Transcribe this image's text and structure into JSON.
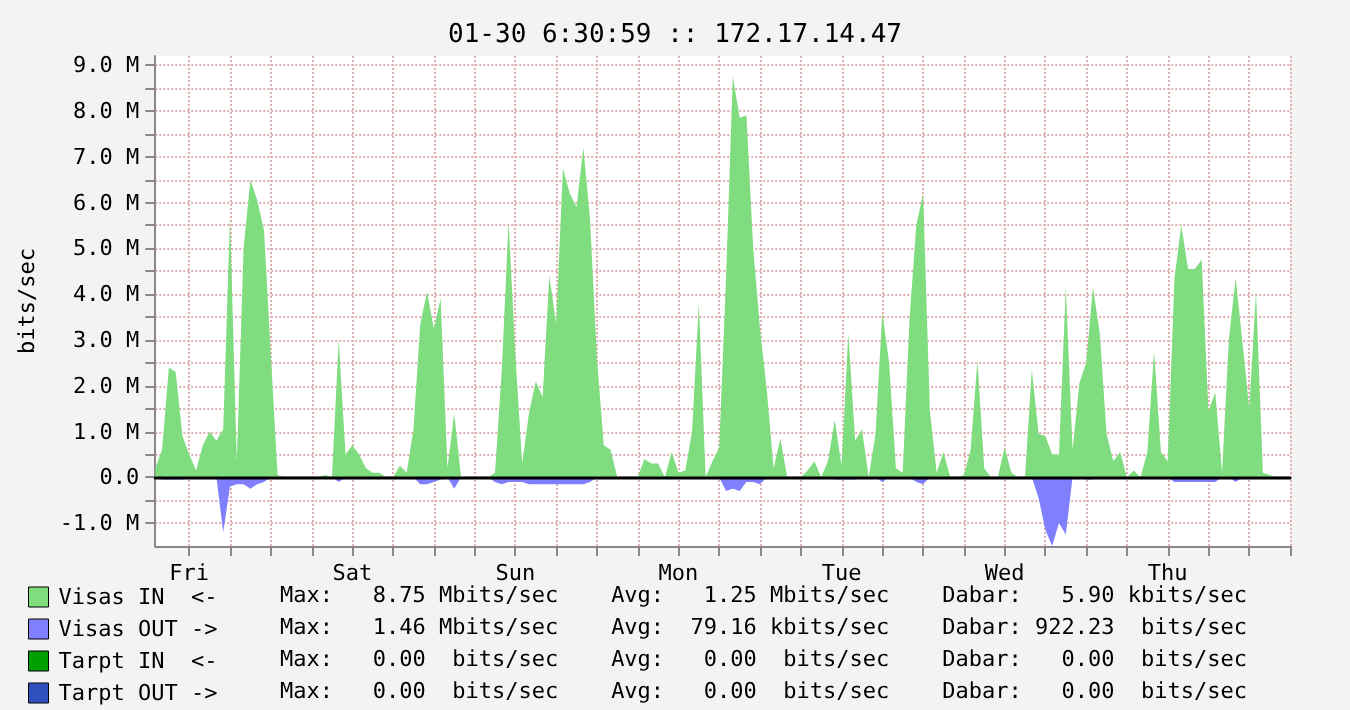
{
  "chart_data": {
    "type": "area",
    "title": "01-30 6:30:59 :: 172.17.14.47",
    "ylabel": "bits/sec",
    "categories": [
      null,
      null,
      null,
      null,
      null,
      "Fri",
      null,
      null,
      null,
      null,
      null,
      null,
      null,
      null,
      null,
      null,
      null,
      null,
      null,
      null,
      null,
      null,
      null,
      null,
      null,
      null,
      null,
      null,
      null,
      "Sat",
      null,
      null,
      null,
      null,
      null,
      null,
      null,
      null,
      null,
      null,
      null,
      null,
      null,
      null,
      null,
      null,
      null,
      null,
      null,
      null,
      null,
      null,
      null,
      "Sun",
      null,
      null,
      null,
      null,
      null,
      null,
      null,
      null,
      null,
      null,
      null,
      null,
      null,
      null,
      null,
      null,
      null,
      null,
      null,
      null,
      null,
      null,
      null,
      "Mon",
      null,
      null,
      null,
      null,
      null,
      null,
      null,
      null,
      null,
      null,
      null,
      null,
      null,
      null,
      null,
      null,
      null,
      null,
      null,
      null,
      null,
      null,
      null,
      "Tue",
      null,
      null,
      null,
      null,
      null,
      null,
      null,
      null,
      null,
      null,
      null,
      null,
      null,
      null,
      null,
      null,
      null,
      null,
      null,
      null,
      null,
      null,
      null,
      "Wed",
      null,
      null,
      null,
      null,
      null,
      null,
      null,
      null,
      null,
      null,
      null,
      null,
      null,
      null,
      null,
      null,
      null,
      null,
      null,
      null,
      null,
      null,
      null,
      "Thu",
      null,
      null,
      null,
      null,
      null,
      null,
      null,
      null,
      null,
      null,
      null,
      null,
      null,
      null,
      null,
      null,
      null,
      null
    ],
    "ylim": [
      -1.5,
      9.2
    ],
    "yticks": [
      {
        "value": -1,
        "label": "-1.0 M"
      },
      {
        "value": -0.5,
        "label": null
      },
      {
        "value": 0,
        "label": "0.0"
      },
      {
        "value": 0.5,
        "label": null
      },
      {
        "value": 1,
        "label": "1.0 M"
      },
      {
        "value": 1.5,
        "label": null
      },
      {
        "value": 2,
        "label": "2.0 M"
      },
      {
        "value": 2.5,
        "label": null
      },
      {
        "value": 3,
        "label": "3.0 M"
      },
      {
        "value": 3.5,
        "label": null
      },
      {
        "value": 4,
        "label": "4.0 M"
      },
      {
        "value": 4.5,
        "label": null
      },
      {
        "value": 5,
        "label": "5.0 M"
      },
      {
        "value": 5.5,
        "label": null
      },
      {
        "value": 6,
        "label": "6.0 M"
      },
      {
        "value": 6.5,
        "label": null
      },
      {
        "value": 7,
        "label": "7.0 M"
      },
      {
        "value": 7.5,
        "label": null
      },
      {
        "value": 8,
        "label": "8.0 M"
      },
      {
        "value": 8.5,
        "label": null
      },
      {
        "value": 9,
        "label": "9.0 M"
      }
    ],
    "grid": true,
    "legend": "bottom",
    "marker": "none",
    "annotations": [
      "Max:   8.75 Mbits/sec    Avg:   1.25 Mbits/sec    Dabar:   5.90 kbits/sec",
      "Max:   1.46 Mbits/sec    Avg:  79.16 kbits/sec    Dabar: 922.23  bits/sec",
      "Max:   0.00  bits/sec    Avg:   0.00  bits/sec    Dabar:   0.00  bits/sec",
      "Max:   0.00  bits/sec    Avg:   0.00  bits/sec    Dabar:   0.00  bits/sec"
    ],
    "series": [
      {
        "name": "Visas IN  <-",
        "color": "#7fdc7f",
        "values": [
          0.2,
          0.6,
          2.4,
          2.3,
          0.9,
          0.5,
          0.15,
          0.7,
          1.0,
          0.8,
          1.05,
          5.7,
          0.35,
          5.0,
          6.5,
          6.05,
          5.4,
          2.7,
          0.05,
          0,
          0,
          0,
          0,
          0,
          0,
          0.05,
          0,
          3.0,
          0.5,
          0.7,
          0.5,
          0.2,
          0.1,
          0.1,
          0,
          0,
          0.25,
          0.1,
          1.05,
          3.35,
          4.05,
          3.25,
          3.9,
          0.2,
          1.4,
          0,
          0,
          0,
          0,
          0,
          0.1,
          2.35,
          5.6,
          2.65,
          0.3,
          1.4,
          2.1,
          1.75,
          4.4,
          3.35,
          6.75,
          6.2,
          5.9,
          7.2,
          5.6,
          2.6,
          0.7,
          0.6,
          0,
          0,
          0,
          0,
          0.4,
          0.3,
          0.3,
          0,
          0.55,
          0.1,
          0.15,
          1.0,
          3.8,
          0,
          0.35,
          0.65,
          4.35,
          8.75,
          7.85,
          7.9,
          5.0,
          3.25,
          1.9,
          0.2,
          0.85,
          0,
          0,
          0,
          0.15,
          0.35,
          0,
          0.35,
          1.25,
          0.25,
          3.15,
          0.8,
          1.05,
          0,
          0.95,
          3.6,
          2.5,
          0.2,
          0.1,
          3.45,
          5.5,
          6.2,
          1.45,
          0.1,
          0.55,
          0,
          0,
          0.05,
          0.6,
          2.55,
          0.2,
          0,
          0,
          0.65,
          0.1,
          0,
          0,
          2.35,
          0.95,
          0.9,
          0.5,
          0.5,
          4.15,
          0.6,
          2.05,
          2.5,
          4.15,
          3.15,
          0.95,
          0.35,
          0.55,
          0,
          0.15,
          0,
          0.55,
          2.75,
          0.55,
          0.35,
          4.35,
          5.5,
          4.55,
          4.55,
          4.75,
          1.45,
          1.85,
          0.1,
          3.0,
          4.35,
          2.95,
          1.5,
          4.05,
          0.1,
          0.05,
          0,
          0,
          0
        ]
      },
      {
        "name": "Visas OUT ->",
        "color": "#8080ff",
        "values": [
          0,
          -0.05,
          -0.05,
          -0.05,
          -0.05,
          0,
          0,
          0,
          0,
          0,
          -1.2,
          -0.2,
          -0.15,
          -0.15,
          -0.25,
          -0.15,
          -0.1,
          0,
          0,
          0,
          0,
          0,
          0,
          0,
          0,
          0,
          0,
          -0.1,
          0,
          0,
          0,
          0,
          0,
          0,
          0,
          0,
          0,
          0,
          0,
          -0.15,
          -0.15,
          -0.1,
          -0.05,
          0,
          -0.25,
          0,
          0,
          0,
          0,
          0,
          -0.1,
          -0.15,
          -0.1,
          -0.1,
          -0.1,
          -0.15,
          -0.15,
          -0.15,
          -0.15,
          -0.15,
          -0.15,
          -0.15,
          -0.15,
          -0.15,
          -0.1,
          0,
          0,
          0,
          0,
          0,
          0,
          0,
          0,
          0,
          0,
          0,
          0,
          0,
          0,
          0,
          0,
          0,
          0,
          0,
          -0.3,
          -0.25,
          -0.3,
          -0.1,
          -0.1,
          -0.15,
          0,
          0,
          0,
          0,
          0,
          0,
          0,
          0,
          0,
          0,
          -0.05,
          -0.05,
          -0.05,
          -0.05,
          0,
          0,
          0,
          -0.1,
          0,
          0,
          0,
          0,
          -0.1,
          -0.15,
          0,
          0,
          0,
          0,
          0,
          0,
          0,
          0,
          0,
          0,
          0,
          0,
          0,
          0,
          0,
          0,
          -0.45,
          -1.15,
          -1.5,
          -1.0,
          -1.25,
          0,
          0,
          -0.05,
          -0.05,
          0,
          0,
          0,
          0,
          0,
          0,
          0,
          0,
          0,
          0,
          0,
          -0.1,
          -0.1,
          -0.1,
          -0.1,
          -0.1,
          -0.1,
          -0.1,
          0,
          0,
          -0.1,
          0,
          0,
          0,
          0,
          0,
          0,
          0,
          0
        ]
      },
      {
        "name": "Tarpt IN  <-",
        "color": "#00a000",
        "values": [
          null,
          null,
          null,
          null,
          null,
          null,
          null,
          null,
          null,
          null,
          null,
          null,
          null,
          null,
          null,
          null,
          null,
          null,
          null,
          null,
          null,
          null,
          null,
          null,
          null,
          null,
          null,
          null,
          null,
          null,
          null,
          null,
          null,
          null,
          null,
          null,
          null,
          null,
          null,
          null,
          null,
          null,
          null,
          null,
          null,
          null,
          null,
          null,
          null,
          null,
          null,
          null,
          null,
          null,
          null,
          null,
          null,
          null,
          null,
          null,
          null,
          null,
          null,
          null,
          null,
          null,
          null,
          null,
          null,
          null,
          null,
          null,
          null,
          null,
          null,
          null,
          null,
          null,
          null,
          null,
          null,
          null,
          null,
          null,
          null,
          null,
          null,
          null,
          null,
          null,
          null,
          null,
          null,
          null,
          null,
          null,
          null,
          null,
          null,
          null,
          null,
          null,
          null,
          null,
          null,
          null,
          null,
          null,
          null,
          null,
          null,
          null,
          null,
          null,
          null,
          null,
          null,
          null,
          null,
          null,
          null,
          null,
          null,
          null,
          null,
          null,
          null,
          null,
          null,
          null,
          null,
          null,
          null,
          null,
          null,
          null,
          null,
          null,
          null,
          null,
          null,
          null,
          null,
          null,
          null,
          null,
          null,
          null,
          null,
          null,
          null,
          null,
          null,
          null,
          null,
          null,
          null,
          null,
          null,
          null,
          null,
          null,
          null,
          null,
          null,
          null,
          null,
          null
        ]
      },
      {
        "name": "Tarpt OUT ->",
        "color": "#3050c0",
        "values": [
          null,
          null,
          null,
          null,
          null,
          null,
          null,
          null,
          null,
          null,
          null,
          null,
          null,
          null,
          null,
          null,
          null,
          null,
          null,
          null,
          null,
          null,
          null,
          null,
          null,
          null,
          null,
          null,
          null,
          null,
          null,
          null,
          null,
          null,
          null,
          null,
          null,
          null,
          null,
          null,
          null,
          null,
          null,
          null,
          null,
          null,
          null,
          null,
          null,
          null,
          null,
          null,
          null,
          null,
          null,
          null,
          null,
          null,
          null,
          null,
          null,
          null,
          null,
          null,
          null,
          null,
          null,
          null,
          null,
          null,
          null,
          null,
          null,
          null,
          null,
          null,
          null,
          null,
          null,
          null,
          null,
          null,
          null,
          null,
          null,
          null,
          null,
          null,
          null,
          null,
          null,
          null,
          null,
          null,
          null,
          null,
          null,
          null,
          null,
          null,
          null,
          null,
          null,
          null,
          null,
          null,
          null,
          null,
          null,
          null,
          null,
          null,
          null,
          null,
          null,
          null,
          null,
          null,
          null,
          null,
          null,
          null,
          null,
          null,
          null,
          null,
          null,
          null,
          null,
          null,
          null,
          null,
          null,
          null,
          null,
          null,
          null,
          null,
          null,
          null,
          null,
          null,
          null,
          null,
          null,
          null,
          null,
          null,
          null,
          null,
          null,
          null,
          null,
          null,
          null,
          null,
          null,
          null,
          null,
          null,
          null,
          null,
          null,
          null,
          null,
          null,
          null,
          null
        ]
      }
    ]
  }
}
